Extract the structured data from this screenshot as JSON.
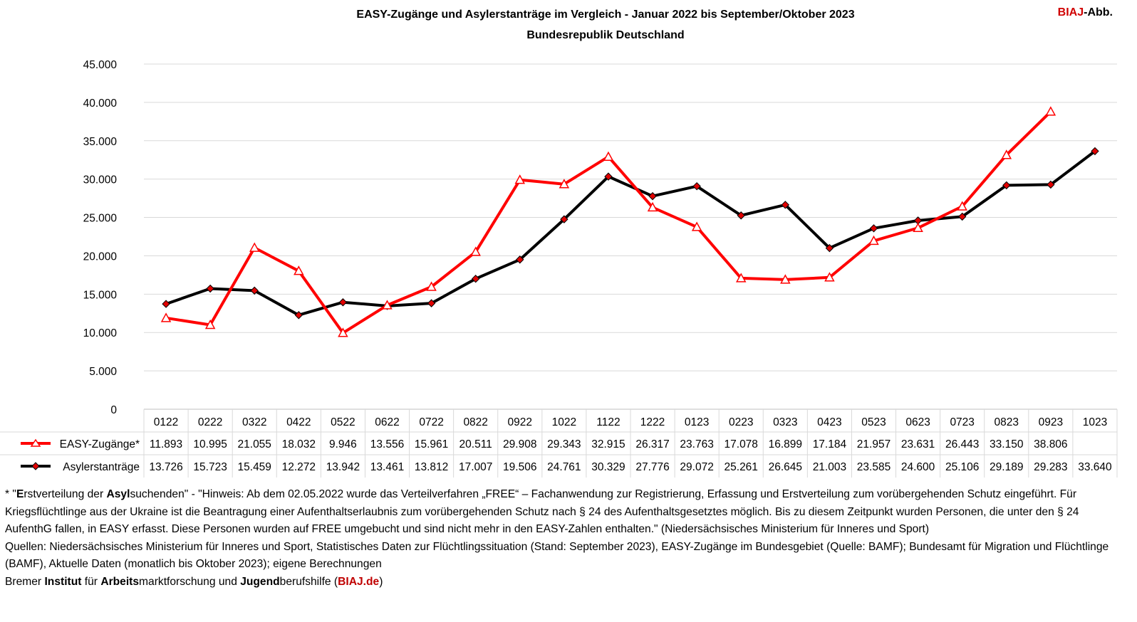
{
  "header": {
    "title": "EASY-Zugänge und Asylerstanträge im Vergleich - Januar 2022 bis September/Oktober 2023",
    "subtitle": "Bundesrepublik Deutschland",
    "brand_red": "BIAJ",
    "brand_rest": "-Abb."
  },
  "chart_data": {
    "type": "line",
    "title": "EASY-Zugänge und Asylerstanträge im Vergleich - Januar 2022 bis September/Oktober 2023",
    "subtitle": "Bundesrepublik Deutschland",
    "categories": [
      "0122",
      "0222",
      "0322",
      "0422",
      "0522",
      "0622",
      "0722",
      "0822",
      "0922",
      "1022",
      "1122",
      "1222",
      "0123",
      "0223",
      "0323",
      "0423",
      "0523",
      "0623",
      "0723",
      "0823",
      "0923",
      "1023"
    ],
    "ylim": [
      0,
      45000
    ],
    "yticks": [
      0,
      5000,
      10000,
      15000,
      20000,
      25000,
      30000,
      35000,
      40000,
      45000
    ],
    "ytick_labels": [
      "0",
      "5.000",
      "10.000",
      "15.000",
      "20.000",
      "25.000",
      "30.000",
      "35.000",
      "40.000",
      "45.000"
    ],
    "grid": true,
    "legend": "data-table-left",
    "series": [
      {
        "name": "EASY-Zugänge*",
        "color": "#ff0000",
        "marker": "triangle-open",
        "values": [
          11893,
          10995,
          21055,
          18032,
          9946,
          13556,
          15961,
          20511,
          29908,
          29343,
          32915,
          26317,
          23763,
          17078,
          16899,
          17184,
          21957,
          23631,
          26443,
          33150,
          38806,
          null
        ],
        "labels": [
          "11.893",
          "10.995",
          "21.055",
          "18.032",
          "9.946",
          "13.556",
          "15.961",
          "20.511",
          "29.908",
          "29.343",
          "32.915",
          "26.317",
          "23.763",
          "17.078",
          "16.899",
          "17.184",
          "21.957",
          "23.631",
          "26.443",
          "33.150",
          "38.806",
          ""
        ]
      },
      {
        "name": "Asylerstanträge",
        "color": "#000000",
        "marker": "diamond-red",
        "values": [
          13726,
          15723,
          15459,
          12272,
          13942,
          13461,
          13812,
          17007,
          19506,
          24761,
          30329,
          27776,
          29072,
          25261,
          26645,
          21003,
          23585,
          24600,
          25106,
          29189,
          29283,
          33640
        ],
        "labels": [
          "13.726",
          "15.723",
          "15.459",
          "12.272",
          "13.942",
          "13.461",
          "13.812",
          "17.007",
          "19.506",
          "24.761",
          "30.329",
          "27.776",
          "29.072",
          "25.261",
          "26.645",
          "21.003",
          "23.585",
          "24.600",
          "25.106",
          "29.189",
          "29.283",
          "33.640"
        ]
      }
    ]
  },
  "notes": {
    "n1_a": "* \"",
    "n1_b1": "E",
    "n1_c": "rstverteilung der ",
    "n1_b2": "Asyl",
    "n1_d": "suchenden\" - \"Hinweis: Ab dem 02.05.2022 wurde das Verteilverfahren „FREE“ – Fachanwendung zur Registrierung, Erfassung und Erstverteilung zum vorübergehenden Schutz eingeführt. Für Kriegsflüchtlinge aus der Ukraine ist die Beantragung einer Aufenthaltserlaubnis zum vorübergehenden Schutz nach § 24 des Aufenthaltsgesetztes möglich. Bis zu diesem Zeitpunkt wurden Personen, die unter den § 24 AufenthG fallen, in EASY erfasst. Diese Personen wurden auf FREE umgebucht und sind nicht mehr in den EASY-Zahlen enthalten.\" (Niedersächsisches Ministerium für Inneres und Sport)",
    "sources": "Quellen: Niedersächsisches Ministerium für Inneres und Sport, Statistisches Daten zur Flüchtlingssituation (Stand: September 2023), EASY-Zugänge im Bundesgebiet (Quelle: BAMF); Bundesamt für Migration und Flüchtlinge (BAMF), Aktuelle Daten (monatlich bis Oktober 2023); eigene Berechnungen",
    "f_1": "Bremer ",
    "f_b1": "Institut",
    "f_2": " für ",
    "f_b2": "Arbeits",
    "f_3": "marktforschung und ",
    "f_b3": "Jugend",
    "f_4": "berufshilfe (",
    "f_link": "BIAJ.de",
    "f_5": ")"
  }
}
